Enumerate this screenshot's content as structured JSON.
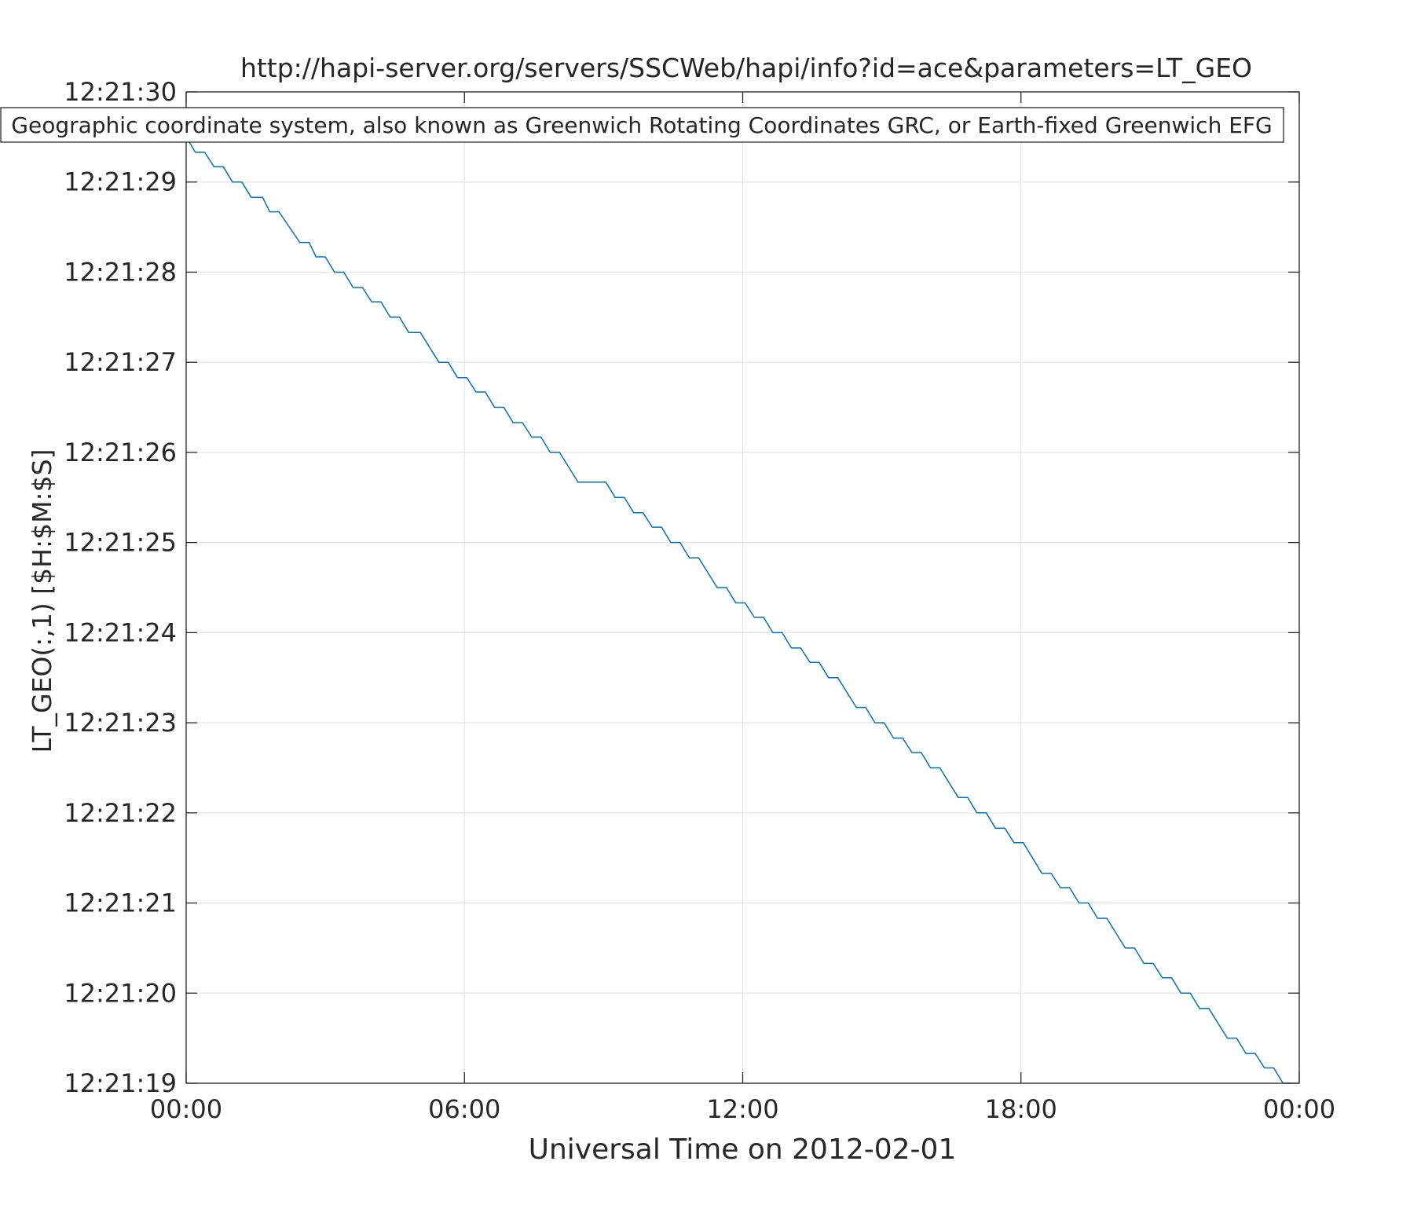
{
  "chart_data": {
    "type": "line",
    "title": "http://hapi-server.org/servers/SSCWeb/hapi/info?id=ace&parameters=LT_GEO",
    "annotation": "Geographic coordinate system, also known as Greenwich Rotating Coordinates GRC, or Earth-fixed Greenwich EFG",
    "xlabel": "Universal Time on 2012-02-01",
    "ylabel": "LT_GEO(:,1) [$H:$M:$S]",
    "x_unit": "hours since 2012-02-01 00:00 UT",
    "xlim": [
      0,
      24
    ],
    "x_ticks": [
      {
        "value": 0,
        "label": "00:00"
      },
      {
        "value": 6,
        "label": "06:00"
      },
      {
        "value": 12,
        "label": "12:00"
      },
      {
        "value": 18,
        "label": "18:00"
      },
      {
        "value": 24,
        "label": "00:00"
      }
    ],
    "y_unit": "local time as seconds past 12:21:00",
    "ylim": [
      19,
      30
    ],
    "y_ticks": [
      {
        "value": 30,
        "label": "12:21:30"
      },
      {
        "value": 29,
        "label": "12:21:29"
      },
      {
        "value": 28,
        "label": "12:21:28"
      },
      {
        "value": 27,
        "label": "12:21:27"
      },
      {
        "value": 26,
        "label": "12:21:26"
      },
      {
        "value": 25,
        "label": "12:21:25"
      },
      {
        "value": 24,
        "label": "12:21:24"
      },
      {
        "value": 23,
        "label": "12:21:23"
      },
      {
        "value": 22,
        "label": "12:21:22"
      },
      {
        "value": 21,
        "label": "12:21:21"
      },
      {
        "value": 20,
        "label": "12:21:20"
      },
      {
        "value": 19,
        "label": "12:21:19"
      }
    ],
    "grid": true,
    "series": [
      {
        "color": "#0072BD",
        "step_pattern": "staircase",
        "points": [
          [
            0.0,
            29.5
          ],
          [
            0.2,
            29.33
          ],
          [
            0.4,
            29.33
          ],
          [
            0.6,
            29.17
          ],
          [
            0.8,
            29.17
          ],
          [
            1.0,
            29.0
          ],
          [
            1.2,
            29.0
          ],
          [
            1.4,
            28.83
          ],
          [
            1.65,
            28.83
          ],
          [
            1.8,
            28.67
          ],
          [
            2.0,
            28.67
          ],
          [
            2.45,
            28.33
          ],
          [
            2.65,
            28.33
          ],
          [
            2.8,
            28.17
          ],
          [
            3.0,
            28.17
          ],
          [
            3.2,
            28.0
          ],
          [
            3.4,
            28.0
          ],
          [
            3.6,
            27.83
          ],
          [
            3.8,
            27.83
          ],
          [
            4.0,
            27.67
          ],
          [
            4.2,
            27.67
          ],
          [
            4.4,
            27.5
          ],
          [
            4.6,
            27.5
          ],
          [
            4.8,
            27.33
          ],
          [
            5.05,
            27.33
          ],
          [
            5.45,
            27.0
          ],
          [
            5.65,
            27.0
          ],
          [
            5.85,
            26.83
          ],
          [
            6.05,
            26.83
          ],
          [
            6.25,
            26.67
          ],
          [
            6.45,
            26.67
          ],
          [
            6.65,
            26.5
          ],
          [
            6.85,
            26.5
          ],
          [
            7.05,
            26.33
          ],
          [
            7.25,
            26.33
          ],
          [
            7.45,
            26.17
          ],
          [
            7.65,
            26.17
          ],
          [
            7.85,
            26.0
          ],
          [
            8.05,
            26.0
          ],
          [
            8.45,
            25.67
          ],
          [
            9.05,
            25.67
          ],
          [
            9.25,
            25.5
          ],
          [
            9.45,
            25.5
          ],
          [
            9.65,
            25.33
          ],
          [
            9.85,
            25.33
          ],
          [
            10.05,
            25.17
          ],
          [
            10.25,
            25.17
          ],
          [
            10.45,
            25.0
          ],
          [
            10.65,
            25.0
          ],
          [
            10.85,
            24.83
          ],
          [
            11.05,
            24.83
          ],
          [
            11.45,
            24.5
          ],
          [
            11.65,
            24.5
          ],
          [
            11.85,
            24.33
          ],
          [
            12.05,
            24.33
          ],
          [
            12.25,
            24.17
          ],
          [
            12.45,
            24.17
          ],
          [
            12.65,
            24.0
          ],
          [
            12.85,
            24.0
          ],
          [
            13.05,
            23.83
          ],
          [
            13.25,
            23.83
          ],
          [
            13.45,
            23.67
          ],
          [
            13.65,
            23.67
          ],
          [
            13.85,
            23.5
          ],
          [
            14.05,
            23.5
          ],
          [
            14.45,
            23.17
          ],
          [
            14.65,
            23.17
          ],
          [
            14.85,
            23.0
          ],
          [
            15.05,
            23.0
          ],
          [
            15.25,
            22.83
          ],
          [
            15.45,
            22.83
          ],
          [
            15.65,
            22.67
          ],
          [
            15.85,
            22.67
          ],
          [
            16.05,
            22.5
          ],
          [
            16.25,
            22.5
          ],
          [
            16.65,
            22.17
          ],
          [
            16.85,
            22.17
          ],
          [
            17.05,
            22.0
          ],
          [
            17.25,
            22.0
          ],
          [
            17.45,
            21.83
          ],
          [
            17.65,
            21.83
          ],
          [
            17.85,
            21.67
          ],
          [
            18.05,
            21.67
          ],
          [
            18.45,
            21.33
          ],
          [
            18.65,
            21.33
          ],
          [
            18.85,
            21.17
          ],
          [
            19.05,
            21.17
          ],
          [
            19.25,
            21.0
          ],
          [
            19.45,
            21.0
          ],
          [
            19.65,
            20.83
          ],
          [
            19.85,
            20.83
          ],
          [
            20.25,
            20.5
          ],
          [
            20.45,
            20.5
          ],
          [
            20.65,
            20.33
          ],
          [
            20.85,
            20.33
          ],
          [
            21.05,
            20.17
          ],
          [
            21.25,
            20.17
          ],
          [
            21.45,
            20.0
          ],
          [
            21.65,
            20.0
          ],
          [
            21.85,
            19.83
          ],
          [
            22.05,
            19.83
          ],
          [
            22.45,
            19.5
          ],
          [
            22.65,
            19.5
          ],
          [
            22.85,
            19.33
          ],
          [
            23.05,
            19.33
          ],
          [
            23.25,
            19.17
          ],
          [
            23.45,
            19.17
          ],
          [
            23.65,
            19.0
          ],
          [
            23.8,
            19.0
          ]
        ]
      }
    ]
  }
}
